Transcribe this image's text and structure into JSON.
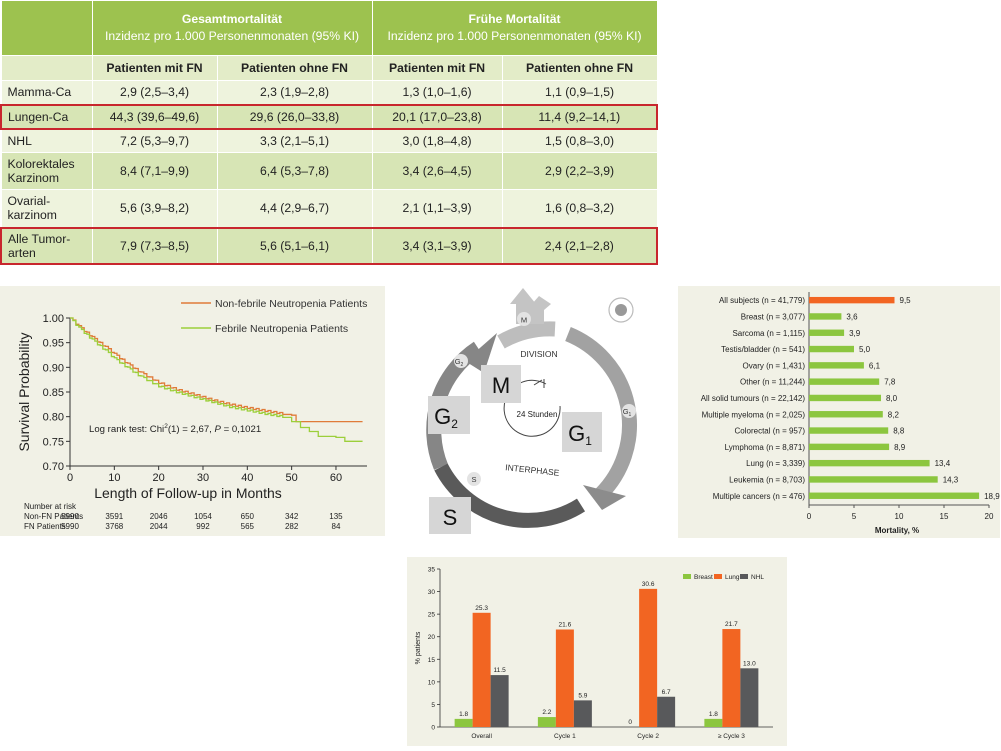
{
  "table": {
    "groups": [
      {
        "title": "Gesamtmortalität",
        "subtitle": "Inzidenz pro 1.000 Personenmonaten (95% KI)"
      },
      {
        "title": "Frühe Mortalität",
        "subtitle": "Inzidenz pro 1.000 Personenmonaten (95% KI)"
      }
    ],
    "columns": [
      "Patienten mit FN",
      "Patienten ohne FN",
      "Patienten mit FN",
      "Patienten ohne FN"
    ],
    "rows": [
      {
        "label": "Mamma-Ca",
        "cells": [
          "2,9 (2,5–3,4)",
          "2,3 (1,9–2,8)",
          "1,3 (1,0–1,6)",
          "1,1 (0,9–1,5)"
        ]
      },
      {
        "label": "Lungen-Ca",
        "cells": [
          "44,3 (39,6–49,6)",
          "29,6 (26,0–33,8)",
          "20,1 (17,0–23,8)",
          "11,4 (9,2–14,1)"
        ]
      },
      {
        "label": "NHL",
        "cells": [
          "7,2 (5,3–9,7)",
          "3,3 (2,1–5,1)",
          "3,0 (1,8–4,8)",
          "1,5 (0,8–3,0)"
        ]
      },
      {
        "label": "Kolorektales Karzinom",
        "cells": [
          "8,4 (7,1–9,9)",
          "6,4 (5,3–7,8)",
          "3,4 (2,6–4,5)",
          "2,9 (2,2–3,9)"
        ]
      },
      {
        "label": "Ovarial-karzinom",
        "cells": [
          "5,6 (3,9–8,2)",
          "4,4 (2,9–6,7)",
          "2,1 (1,1–3,9)",
          "1,6 (0,8–3,2)"
        ]
      },
      {
        "label": "Alle Tumor-arten",
        "cells": [
          "7,9 (7,3–8,5)",
          "5,6 (5,1–6,1)",
          "3,4 (3,1–3,9)",
          "2,4 (2,1–2,8)"
        ]
      }
    ]
  },
  "cell_cycle": {
    "phases": {
      "m": "M",
      "g1": "G",
      "g1_sub": "1",
      "g2": "G",
      "g2_sub": "2",
      "s": "S"
    },
    "labels": {
      "division": "DIVISION",
      "interphase": "INTERPHASE",
      "center": "24 Stunden"
    },
    "small": {
      "m": "M",
      "g2": "G",
      "g2_sub": "2",
      "g1": "G",
      "g1_sub": "1",
      "s": "S"
    }
  },
  "chart_data": [
    {
      "type": "line",
      "title": "",
      "xlabel": "Length of Follow-up in Months",
      "ylabel": "Survival Probability",
      "xlim": [
        0,
        67
      ],
      "ylim": [
        0.7,
        1.0
      ],
      "xticks": [
        "0",
        "10",
        "20",
        "30",
        "40",
        "50",
        "60"
      ],
      "yticks": [
        "0.70",
        "0.75",
        "0.80",
        "0.85",
        "0.90",
        "0.95",
        "1.00"
      ],
      "legend_position": "top-right",
      "annotation": {
        "prefix": "Log rank test: Chi",
        "sup": "2",
        "mid": "(1) = 2,67, ",
        "p": "P",
        "suffix": " = 0,1021"
      },
      "colors": {
        "non_fn": "#e07b39",
        "fn": "#9ccf3a"
      },
      "series": [
        {
          "name": "Non-febrile Neutropenia Patients",
          "x": [
            0,
            2,
            5,
            8,
            10,
            13,
            16,
            20,
            24,
            28,
            32,
            36,
            40,
            44,
            48,
            50,
            51,
            55,
            60,
            66
          ],
          "y": [
            1.0,
            0.983,
            0.961,
            0.941,
            0.927,
            0.907,
            0.889,
            0.869,
            0.855,
            0.845,
            0.834,
            0.825,
            0.818,
            0.812,
            0.806,
            0.803,
            0.79,
            0.79,
            0.79,
            0.79
          ]
        },
        {
          "name": "Febrile Neutropenia Patients",
          "x": [
            0,
            2,
            5,
            8,
            10,
            13,
            16,
            20,
            24,
            28,
            32,
            36,
            40,
            44,
            48,
            50,
            52,
            54,
            56,
            60,
            62,
            66
          ],
          "y": [
            1.0,
            0.98,
            0.956,
            0.934,
            0.918,
            0.899,
            0.881,
            0.862,
            0.85,
            0.84,
            0.83,
            0.82,
            0.813,
            0.806,
            0.8,
            0.79,
            0.778,
            0.77,
            0.76,
            0.758,
            0.75,
            0.75
          ]
        }
      ],
      "risk_table": {
        "title": "Number at risk",
        "rows": [
          {
            "label": "Non-FN Patients",
            "values": [
              "5990",
              "3591",
              "2046",
              "1054",
              "650",
              "342",
              "135"
            ]
          },
          {
            "label": "FN Patients",
            "values": [
              "5990",
              "3768",
              "2044",
              "992",
              "565",
              "282",
              "84"
            ]
          }
        ],
        "at": [
          0,
          10,
          20,
          30,
          40,
          50,
          60
        ]
      }
    },
    {
      "type": "bar",
      "orientation": "horizontal",
      "title": "",
      "xlabel": "Mortality, %",
      "ylabel": "",
      "xlim": [
        0,
        20
      ],
      "xticks": [
        "0",
        "5",
        "10",
        "15",
        "20"
      ],
      "categories": [
        "All subjects (n = 41,779)",
        "Breast (n = 3,077)",
        "Sarcoma (n = 1,115)",
        "Testis/bladder (n = 541)",
        "Ovary (n = 1,431)",
        "Other (n = 11,244)",
        "All solid tumours (n = 22,142)",
        "Multiple myeloma (n = 2,025)",
        "Colorectal (n = 957)",
        "Lymphoma (n = 8,871)",
        "Lung (n = 3,339)",
        "Leukemia (n = 8,703)",
        "Multiple cancers (n = 476)"
      ],
      "values": [
        9.5,
        3.6,
        3.9,
        5.0,
        6.1,
        7.8,
        8.0,
        8.2,
        8.8,
        8.9,
        13.4,
        14.3,
        18.9
      ],
      "value_labels": [
        "9,5",
        "3,6",
        "3,9",
        "5,0",
        "6,1",
        "7,8",
        "8,0",
        "8,2",
        "8,8",
        "8,9",
        "13,4",
        "14,3",
        "18,9"
      ],
      "colors": {
        "highlight": "#f26522",
        "default": "#8cc63f"
      }
    },
    {
      "type": "bar",
      "title": "",
      "xlabel": "",
      "ylabel": "% patients",
      "ylim": [
        0,
        35
      ],
      "yticks": [
        "0",
        "5",
        "10",
        "15",
        "20",
        "25",
        "30",
        "35"
      ],
      "categories": [
        "Overall",
        "Cycle 1",
        "Cycle 2",
        "≥ Cycle 3"
      ],
      "legend_position": "top-right",
      "series": [
        {
          "name": "Breast",
          "color": "#8cc63f",
          "values": [
            1.8,
            2.2,
            0,
            1.8
          ],
          "labels": [
            "1.8",
            "2.2",
            "0",
            "1.8"
          ]
        },
        {
          "name": "Lung",
          "color": "#f26522",
          "values": [
            25.3,
            21.6,
            30.6,
            21.7
          ],
          "labels": [
            "25.3",
            "21.6",
            "30.6",
            "21.7"
          ]
        },
        {
          "name": "NHL",
          "color": "#58595b",
          "values": [
            11.5,
            5.9,
            6.7,
            13.0
          ],
          "labels": [
            "11.5",
            "5.9",
            "6.7",
            "13.0"
          ]
        }
      ]
    }
  ]
}
